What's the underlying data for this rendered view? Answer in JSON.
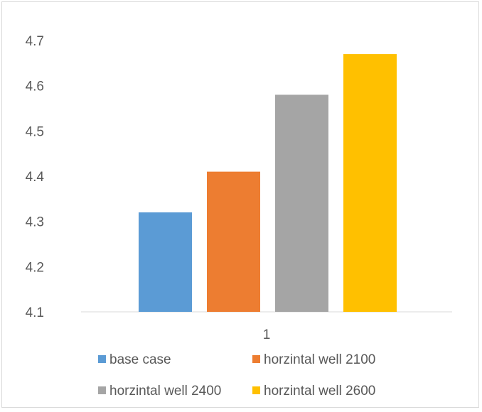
{
  "chart_data": {
    "type": "bar",
    "title": "",
    "xlabel": "",
    "ylabel": "",
    "categories": [
      "1"
    ],
    "ylim": [
      4.1,
      4.7
    ],
    "yticks": [
      "4.1",
      "4.2",
      "4.3",
      "4.4",
      "4.5",
      "4.6",
      "4.7"
    ],
    "grid": false,
    "legend_position": "bottom",
    "series": [
      {
        "name": "base case",
        "values": [
          4.32
        ],
        "color": "#5b9bd5"
      },
      {
        "name": "horzintal well 2100",
        "values": [
          4.41
        ],
        "color": "#ed7d31"
      },
      {
        "name": "horzintal well 2400",
        "values": [
          4.58
        ],
        "color": "#a5a5a5"
      },
      {
        "name": "horzintal well 2600",
        "values": [
          4.67
        ],
        "color": "#ffc000"
      }
    ]
  }
}
